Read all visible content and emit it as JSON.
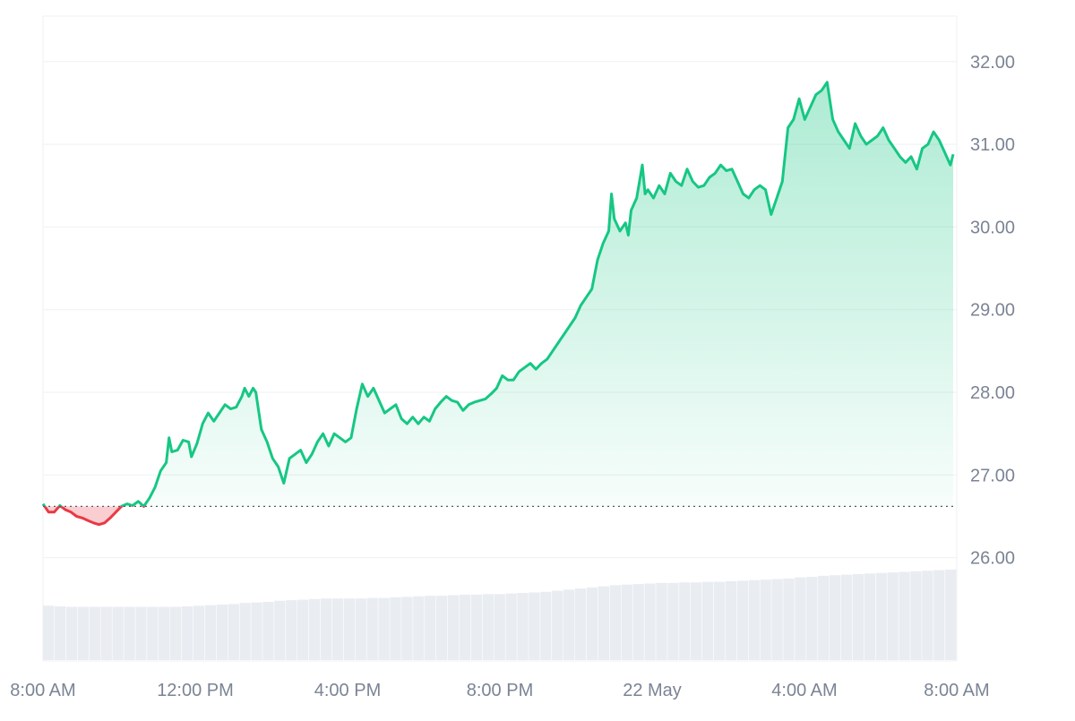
{
  "chart_data": {
    "type": "area",
    "title": "",
    "xlabel": "",
    "ylabel": "",
    "ylim": [
      24.75,
      32.55
    ],
    "y_ticks": [
      "26.00",
      "27.00",
      "28.00",
      "29.00",
      "30.00",
      "31.00",
      "32.00"
    ],
    "x_tick_labels": [
      "8:00 AM",
      "12:00 PM",
      "4:00 PM",
      "8:00 PM",
      "22 May",
      "4:00 AM",
      "8:00 AM"
    ],
    "x_range_hours": [
      0,
      25
    ],
    "baseline": 26.62,
    "grid": true,
    "colors": {
      "up": "#16c784",
      "down": "#ea3943",
      "up_fill": "#16c784",
      "down_fill": "#ea3943",
      "volume": "#e9ecf1",
      "grid": "#eef0f3",
      "axis_text": "#7b8495"
    },
    "series": [
      {
        "values": [
          [
            0.0,
            26.65
          ],
          [
            0.2,
            26.55
          ],
          [
            0.4,
            26.55
          ],
          [
            0.6,
            26.63
          ],
          [
            0.8,
            26.58
          ],
          [
            1.0,
            26.55
          ],
          [
            1.2,
            26.5
          ],
          [
            1.4,
            26.48
          ],
          [
            1.6,
            26.45
          ],
          [
            1.8,
            26.42
          ],
          [
            2.0,
            26.4
          ],
          [
            2.2,
            26.42
          ],
          [
            2.4,
            26.48
          ],
          [
            2.6,
            26.55
          ],
          [
            2.8,
            26.62
          ],
          [
            3.0,
            26.65
          ],
          [
            3.2,
            26.63
          ],
          [
            3.4,
            26.68
          ],
          [
            3.6,
            26.62
          ],
          [
            3.8,
            26.72
          ],
          [
            4.0,
            26.85
          ],
          [
            4.2,
            27.05
          ],
          [
            4.4,
            27.15
          ],
          [
            4.5,
            27.45
          ],
          [
            4.6,
            27.28
          ],
          [
            4.8,
            27.3
          ],
          [
            5.0,
            27.42
          ],
          [
            5.2,
            27.4
          ],
          [
            5.3,
            27.22
          ],
          [
            5.5,
            27.38
          ],
          [
            5.7,
            27.62
          ],
          [
            5.9,
            27.75
          ],
          [
            6.1,
            27.65
          ],
          [
            6.3,
            27.75
          ],
          [
            6.5,
            27.85
          ],
          [
            6.7,
            27.8
          ],
          [
            6.9,
            27.82
          ],
          [
            7.1,
            27.95
          ],
          [
            7.2,
            28.05
          ],
          [
            7.35,
            27.95
          ],
          [
            7.5,
            28.05
          ],
          [
            7.6,
            28.0
          ],
          [
            7.8,
            27.55
          ],
          [
            8.0,
            27.4
          ],
          [
            8.2,
            27.2
          ],
          [
            8.4,
            27.1
          ],
          [
            8.6,
            26.9
          ],
          [
            8.8,
            27.2
          ],
          [
            9.0,
            27.25
          ],
          [
            9.2,
            27.3
          ],
          [
            9.4,
            27.15
          ],
          [
            9.6,
            27.25
          ],
          [
            9.8,
            27.4
          ],
          [
            10.0,
            27.5
          ],
          [
            10.2,
            27.35
          ],
          [
            10.4,
            27.5
          ],
          [
            10.6,
            27.45
          ],
          [
            10.8,
            27.4
          ],
          [
            11.0,
            27.45
          ],
          [
            11.2,
            27.8
          ],
          [
            11.4,
            28.1
          ],
          [
            11.6,
            27.95
          ],
          [
            11.8,
            28.05
          ],
          [
            12.0,
            27.9
          ],
          [
            12.2,
            27.75
          ],
          [
            12.4,
            27.8
          ],
          [
            12.6,
            27.85
          ],
          [
            12.8,
            27.68
          ],
          [
            13.0,
            27.62
          ],
          [
            13.2,
            27.7
          ],
          [
            13.4,
            27.62
          ],
          [
            13.6,
            27.7
          ],
          [
            13.8,
            27.65
          ],
          [
            14.0,
            27.8
          ],
          [
            14.2,
            27.88
          ],
          [
            14.4,
            27.95
          ],
          [
            14.6,
            27.9
          ],
          [
            14.8,
            27.88
          ],
          [
            15.0,
            27.78
          ],
          [
            15.2,
            27.85
          ],
          [
            15.4,
            27.88
          ],
          [
            15.6,
            27.9
          ],
          [
            15.8,
            27.92
          ],
          [
            16.0,
            27.98
          ],
          [
            16.2,
            28.05
          ],
          [
            16.4,
            28.2
          ],
          [
            16.6,
            28.15
          ],
          [
            16.8,
            28.15
          ],
          [
            17.0,
            28.25
          ],
          [
            17.2,
            28.3
          ],
          [
            17.4,
            28.35
          ],
          [
            17.6,
            28.28
          ],
          [
            17.8,
            28.35
          ],
          [
            18.0,
            28.4
          ],
          [
            18.2,
            28.5
          ],
          [
            18.4,
            28.6
          ],
          [
            18.6,
            28.7
          ],
          [
            18.8,
            28.8
          ],
          [
            19.0,
            28.9
          ],
          [
            19.2,
            29.05
          ],
          [
            19.4,
            29.15
          ],
          [
            19.6,
            29.25
          ],
          [
            19.8,
            29.6
          ],
          [
            20.0,
            29.8
          ],
          [
            20.2,
            29.95
          ],
          [
            20.3,
            30.4
          ],
          [
            20.4,
            30.1
          ],
          [
            20.6,
            29.95
          ],
          [
            20.8,
            30.05
          ],
          [
            20.9,
            29.9
          ],
          [
            21.0,
            30.2
          ],
          [
            21.2,
            30.35
          ],
          [
            21.4,
            30.75
          ],
          [
            21.5,
            30.4
          ],
          [
            21.6,
            30.45
          ],
          [
            21.8,
            30.35
          ],
          [
            22.0,
            30.5
          ],
          [
            22.2,
            30.4
          ],
          [
            22.4,
            30.65
          ],
          [
            22.6,
            30.55
          ],
          [
            22.8,
            30.5
          ],
          [
            23.0,
            30.7
          ],
          [
            23.2,
            30.55
          ],
          [
            23.4,
            30.48
          ],
          [
            23.6,
            30.5
          ],
          [
            23.8,
            30.6
          ],
          [
            24.0,
            30.65
          ],
          [
            24.2,
            30.75
          ],
          [
            24.4,
            30.68
          ],
          [
            24.6,
            30.7
          ],
          [
            24.8,
            30.55
          ],
          [
            25.0,
            30.4
          ],
          [
            25.2,
            30.35
          ],
          [
            25.4,
            30.45
          ],
          [
            25.6,
            30.5
          ],
          [
            25.8,
            30.45
          ],
          [
            26.0,
            30.15
          ],
          [
            26.2,
            30.35
          ],
          [
            26.4,
            30.55
          ],
          [
            26.6,
            31.2
          ],
          [
            26.8,
            31.3
          ],
          [
            27.0,
            31.55
          ],
          [
            27.2,
            31.3
          ],
          [
            27.4,
            31.45
          ],
          [
            27.6,
            31.6
          ],
          [
            27.8,
            31.65
          ],
          [
            28.0,
            31.75
          ],
          [
            28.2,
            31.3
          ],
          [
            28.4,
            31.15
          ],
          [
            28.6,
            31.05
          ],
          [
            28.8,
            30.95
          ],
          [
            29.0,
            31.25
          ],
          [
            29.2,
            31.1
          ],
          [
            29.4,
            31.0
          ],
          [
            29.6,
            31.05
          ],
          [
            29.8,
            31.1
          ],
          [
            30.0,
            31.2
          ],
          [
            30.2,
            31.05
          ],
          [
            30.4,
            30.95
          ],
          [
            30.6,
            30.85
          ],
          [
            30.8,
            30.78
          ],
          [
            31.0,
            30.85
          ],
          [
            31.2,
            30.7
          ],
          [
            31.4,
            30.95
          ],
          [
            31.6,
            31.0
          ],
          [
            31.8,
            31.15
          ],
          [
            32.0,
            31.05
          ],
          [
            32.2,
            30.9
          ],
          [
            32.4,
            30.75
          ],
          [
            32.5,
            30.88
          ]
        ],
        "x_max_raw": 32.5
      }
    ],
    "volume": {
      "values": [
        0.35,
        0.34,
        0.33,
        0.33,
        0.33,
        0.33,
        0.33,
        0.33,
        0.33,
        0.33,
        0.33,
        0.33,
        0.34,
        0.35,
        0.36,
        0.37,
        0.38,
        0.4,
        0.41,
        0.42,
        0.44,
        0.45,
        0.46,
        0.47,
        0.48,
        0.48,
        0.48,
        0.48,
        0.49,
        0.49,
        0.5,
        0.51,
        0.52,
        0.53,
        0.53,
        0.54,
        0.55,
        0.55,
        0.56,
        0.56,
        0.57,
        0.58,
        0.59,
        0.6,
        0.62,
        0.64,
        0.66,
        0.68,
        0.7,
        0.72,
        0.73,
        0.74,
        0.75,
        0.76,
        0.76,
        0.77,
        0.77,
        0.78,
        0.78,
        0.79,
        0.8,
        0.81,
        0.82,
        0.83,
        0.84,
        0.86,
        0.87,
        0.89,
        0.9,
        0.91,
        0.92,
        0.93,
        0.94,
        0.95,
        0.96,
        0.97,
        0.98,
        0.99,
        1.0
      ]
    }
  }
}
